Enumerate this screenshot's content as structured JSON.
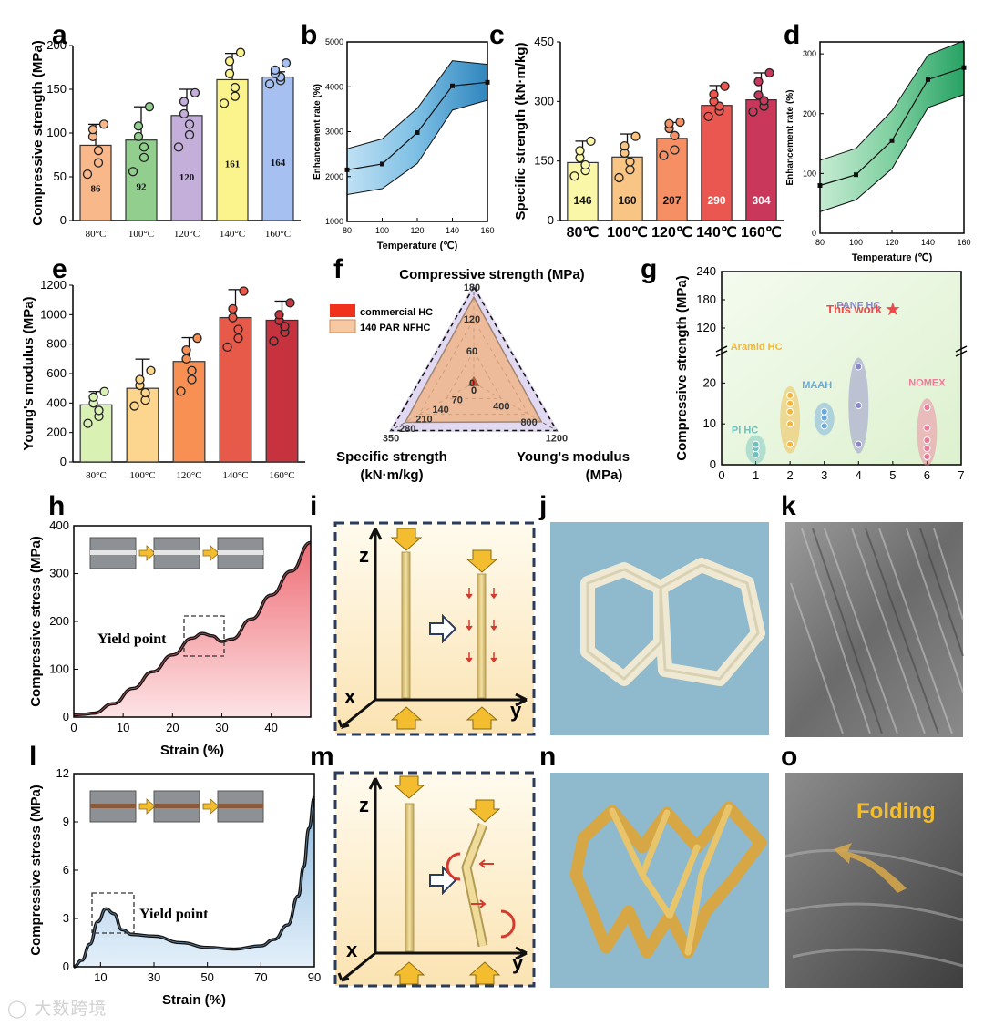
{
  "panel_labels": {
    "a": "a",
    "b": "b",
    "c": "c",
    "d": "d",
    "e": "e",
    "f": "f",
    "g": "g",
    "h": "h",
    "i": "i",
    "j": "j",
    "k": "k",
    "l": "l",
    "m": "m",
    "n": "n",
    "o": "o"
  },
  "colors": {
    "bars_a": [
      "#f8b88a",
      "#92cf8e",
      "#c3afd9",
      "#fbf48d",
      "#a5c0f1"
    ],
    "bars_c": [
      "#fbf7a8",
      "#f9c585",
      "#f68f63",
      "#ea5750",
      "#c9375a"
    ],
    "bars_e": [
      "#d9f2b4",
      "#fcd68e",
      "#f79052",
      "#e75a49",
      "#c7323f"
    ],
    "band_b": "#3a8fc4",
    "band_d": "#2ea66a",
    "curve_h": "#f07b82",
    "curve_l": "#8cb8de",
    "accent_yellow": "#f3bd2f",
    "arrow_red": "#d43a2e",
    "photo_blue": "#8fb9cc"
  },
  "chart_data": [
    {
      "id": "a",
      "type": "bar",
      "categories": [
        "80°C",
        "100°C",
        "120°C",
        "140°C",
        "160°C"
      ],
      "values": [
        86,
        92,
        120,
        161,
        164
      ],
      "errors": [
        24,
        38,
        30,
        30,
        6
      ],
      "points": [
        [
          53,
          66,
          80,
          96,
          104,
          110
        ],
        [
          56,
          72,
          84,
          96,
          108,
          130
        ],
        [
          84,
          98,
          110,
          122,
          136,
          146
        ],
        [
          134,
          142,
          152,
          168,
          182,
          192
        ],
        [
          156,
          160,
          164,
          168,
          172,
          180
        ]
      ],
      "labels": [
        "86",
        "92",
        "120",
        "161",
        "164"
      ],
      "title": "",
      "xlabel": "",
      "ylabel": "Compressive strength (MPa)",
      "ylim": [
        0,
        200
      ],
      "yticks": [
        "0",
        "50",
        "100",
        "150",
        "200"
      ]
    },
    {
      "id": "b",
      "type": "line",
      "x": [
        80,
        100,
        120,
        140,
        160
      ],
      "y": [
        2150,
        2280,
        2980,
        4020,
        4100
      ],
      "band_upper": [
        2620,
        2840,
        3520,
        4580,
        4500
      ],
      "band_lower": [
        1600,
        1730,
        2290,
        3480,
        3700
      ],
      "xlabel": "Temperature (℃)",
      "ylabel": "Enhancement rate (%)",
      "xlim": [
        80,
        160
      ],
      "ylim": [
        1000,
        5000
      ],
      "xticks": [
        "80",
        "100",
        "120",
        "140",
        "160"
      ],
      "yticks": [
        "1000",
        "2000",
        "3000",
        "4000",
        "5000"
      ]
    },
    {
      "id": "c",
      "type": "bar",
      "categories": [
        "80℃",
        "100℃",
        "120℃",
        "140℃",
        "160℃"
      ],
      "values": [
        146,
        160,
        207,
        290,
        304
      ],
      "errors": [
        54,
        58,
        40,
        50,
        68
      ],
      "points": [
        [
          112,
          126,
          140,
          158,
          176,
          200
        ],
        [
          108,
          128,
          148,
          170,
          188,
          212
        ],
        [
          164,
          178,
          214,
          232,
          244,
          248
        ],
        [
          262,
          276,
          288,
          300,
          318,
          338
        ],
        [
          274,
          288,
          302,
          316,
          350,
          372
        ]
      ],
      "labels": [
        "146",
        "160",
        "207",
        "290",
        "304"
      ],
      "title": "",
      "xlabel": "",
      "ylabel": "Specific strength (kN·m/kg)",
      "ylim": [
        0,
        450
      ],
      "yticks": [
        "0",
        "150",
        "300",
        "450"
      ]
    },
    {
      "id": "d",
      "type": "line",
      "x": [
        80,
        100,
        120,
        140,
        160
      ],
      "y": [
        80,
        98,
        155,
        257,
        277
      ],
      "band_upper": [
        122,
        142,
        205,
        298,
        322
      ],
      "band_lower": [
        36,
        56,
        108,
        210,
        232
      ],
      "xlabel": "Temperature (℃)",
      "ylabel": "Enhancement rate (%)",
      "xlim": [
        80,
        160
      ],
      "ylim": [
        0,
        320
      ],
      "xticks": [
        "80",
        "100",
        "120",
        "140",
        "160"
      ],
      "yticks": [
        "0",
        "100",
        "200",
        "300"
      ]
    },
    {
      "id": "e",
      "type": "bar",
      "categories": [
        "80°C",
        "100°C",
        "120°C",
        "140°C",
        "160°C"
      ],
      "values": [
        388,
        500,
        682,
        980,
        962
      ],
      "errors": [
        90,
        198,
        162,
        190,
        130
      ],
      "points": [
        [
          262,
          310,
          350,
          400,
          440,
          478
        ],
        [
          380,
          420,
          470,
          520,
          560,
          620
        ],
        [
          480,
          560,
          620,
          700,
          760,
          840
        ],
        [
          780,
          840,
          900,
          980,
          1040,
          1160
        ],
        [
          820,
          880,
          920,
          960,
          1000,
          1080
        ]
      ],
      "labels": [],
      "title": "",
      "xlabel": "",
      "ylabel": "Young's modulus (MPa)",
      "ylim": [
        0,
        1200
      ],
      "yticks": [
        "0",
        "200",
        "400",
        "600",
        "800",
        "1000",
        "1200"
      ]
    },
    {
      "id": "f",
      "type": "radar",
      "axes": [
        "Compressive strength (MPa)",
        "Specific strength\n(kN·m/kg)",
        "Young's modulus\n(MPa)"
      ],
      "axis_max": [
        180,
        350,
        1200
      ],
      "series": [
        {
          "name": "commercial HC",
          "values": [
            10,
            20,
            70
          ]
        },
        {
          "name": "140 PAR NFHC",
          "values": [
            161,
            290,
            980
          ]
        }
      ],
      "axis_tick_labels": [
        [
          "0",
          "60",
          "120",
          "180"
        ],
        [
          "0",
          "70",
          "140",
          "210",
          "280",
          "350"
        ],
        [
          "0",
          "400",
          "800",
          "1200"
        ]
      ]
    },
    {
      "id": "g",
      "type": "scatter",
      "xlabel": "",
      "ylabel": "Compressive strength (MPa)",
      "xlim": [
        0,
        7
      ],
      "ylim_lower": [
        0,
        25
      ],
      "ylim_upper": [
        60,
        240
      ],
      "xticks": [
        "0",
        "1",
        "2",
        "3",
        "4",
        "5",
        "6",
        "7"
      ],
      "yticks_lower": [
        "0",
        "10",
        "20"
      ],
      "yticks_upper": [
        "120",
        "180",
        "240"
      ],
      "groups": [
        {
          "name": "PI HC",
          "x": 1,
          "y": [
            2.5,
            4.0,
            5.0
          ],
          "color": "#6ec0bd"
        },
        {
          "name": "Aramid HC",
          "x": 2,
          "y": [
            5,
            10,
            13,
            15,
            17
          ],
          "color": "#f2b638"
        },
        {
          "name": "MAAH",
          "x": 3,
          "y": [
            9.5,
            11.5,
            13
          ],
          "color": "#6aa9dc"
        },
        {
          "name": "PANF HC",
          "x": 4,
          "y": [
            5,
            14.5,
            24
          ],
          "color": "#8a86c7"
        },
        {
          "name": "NOMEX",
          "x": 6,
          "y": [
            2,
            4,
            6,
            9,
            14
          ],
          "color": "#ef7a9a"
        },
        {
          "name": "This work",
          "x": 5,
          "y": [
            161
          ],
          "color": "#ea4a4a"
        }
      ]
    },
    {
      "id": "h",
      "type": "area",
      "xlabel": "Strain (%)",
      "ylabel": "Compressive stress (MPa)",
      "x": [
        0,
        2,
        4,
        8,
        12,
        16,
        20,
        24,
        26,
        28,
        30,
        32,
        36,
        40,
        44,
        48
      ],
      "y": [
        5,
        6,
        8,
        28,
        60,
        95,
        130,
        165,
        175,
        170,
        158,
        163,
        205,
        255,
        305,
        365
      ],
      "xlim": [
        0,
        48
      ],
      "ylim": [
        0,
        400
      ],
      "xticks": [
        "0",
        "10",
        "20",
        "30",
        "40"
      ],
      "yticks": [
        "0",
        "100",
        "200",
        "300",
        "400"
      ],
      "annotation": "Yield point"
    },
    {
      "id": "l",
      "type": "area",
      "xlabel": "Strain (%)",
      "ylabel": "Compressive stress (MPa)",
      "x": [
        0,
        3,
        6,
        9,
        12,
        15,
        18,
        22,
        30,
        40,
        50,
        60,
        70,
        75,
        80,
        84,
        86,
        88,
        90
      ],
      "y": [
        0,
        0.4,
        1.4,
        2.8,
        3.6,
        3.3,
        2.3,
        2.0,
        1.9,
        1.5,
        1.2,
        1.1,
        1.3,
        1.7,
        2.6,
        4.4,
        6.2,
        8.6,
        10.5
      ],
      "xlim": [
        0,
        90
      ],
      "ylim": [
        0,
        12
      ],
      "xticks": [
        "10",
        "30",
        "50",
        "70",
        "90"
      ],
      "yticks": [
        "0",
        "3",
        "6",
        "9",
        "12"
      ],
      "annotation": "Yield point"
    }
  ],
  "diagram_i": {
    "axis_z": "z",
    "axis_x": "x",
    "axis_y": "y"
  },
  "diagram_m": {
    "axis_z": "z",
    "axis_x": "x",
    "axis_y": "y"
  },
  "photo_o": {
    "caption": "Folding"
  },
  "watermark": "大数跨境"
}
